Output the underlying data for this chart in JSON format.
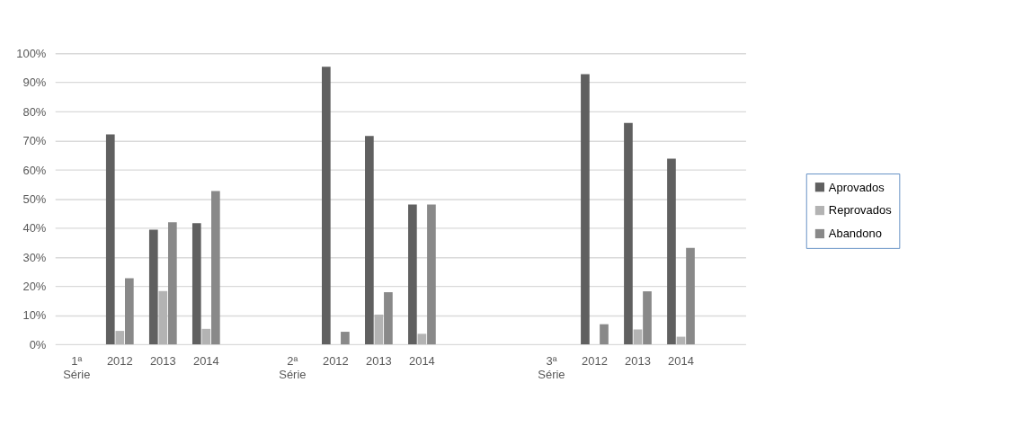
{
  "chart_data": {
    "type": "bar",
    "categories": [
      "1ª Série",
      "2012",
      "2013",
      "2014",
      null,
      "2ª Série",
      "2012",
      "2013",
      "2014",
      null,
      null,
      "3ª Série",
      "2012",
      "2013",
      "2014",
      null
    ],
    "series": [
      {
        "name": "Aprovados",
        "color": "#606060",
        "values": [
          null,
          72.1,
          39.4,
          41.6,
          null,
          null,
          95.4,
          71.6,
          48.0,
          null,
          null,
          null,
          92.8,
          76.1,
          63.8,
          null
        ]
      },
      {
        "name": "Reprovados",
        "color": "#b3b3b3",
        "values": [
          null,
          4.6,
          18.3,
          5.3,
          null,
          null,
          null,
          10.2,
          3.6,
          null,
          null,
          null,
          null,
          5.1,
          2.6,
          null
        ]
      },
      {
        "name": "Abandono",
        "color": "#898989",
        "values": [
          null,
          22.7,
          41.9,
          52.7,
          null,
          null,
          4.3,
          17.9,
          48.0,
          null,
          null,
          null,
          6.9,
          18.2,
          33.1,
          null
        ]
      }
    ],
    "ylim": [
      0,
      100
    ],
    "yticks": [
      {
        "value": 0,
        "label": "0%"
      },
      {
        "value": 10,
        "label": "10%"
      },
      {
        "value": 20,
        "label": "20%"
      },
      {
        "value": 30,
        "label": "30%"
      },
      {
        "value": 40,
        "label": "40%"
      },
      {
        "value": 50,
        "label": "50%"
      },
      {
        "value": 60,
        "label": "60%"
      },
      {
        "value": 70,
        "label": "70%"
      },
      {
        "value": 80,
        "label": "80%"
      },
      {
        "value": 90,
        "label": "90%"
      },
      {
        "value": 100,
        "label": "100%"
      }
    ],
    "grid": "y",
    "legend": "right"
  }
}
